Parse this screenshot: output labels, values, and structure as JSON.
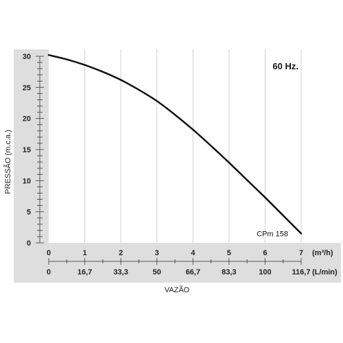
{
  "chart_data": {
    "type": "line",
    "frequency_label": "60 Hz.",
    "ylabel": "PRESSÃO (m.c.a.)",
    "xlabel": "VAZÃO",
    "ylim": [
      0,
      30
    ],
    "y_ticks": [
      "0",
      "5",
      "10",
      "15",
      "20",
      "25",
      "30"
    ],
    "xlim": [
      0,
      7
    ],
    "x_ticks_m3h": [
      "0",
      "1",
      "2",
      "3",
      "4",
      "5",
      "6",
      "7"
    ],
    "x_unit_m3h": "(m³/h)",
    "x_ticks_lmin": [
      "0",
      "16,7",
      "33,3",
      "50",
      "66,7",
      "83,3",
      "100",
      "116,7"
    ],
    "x_unit_lmin": "(L/min)",
    "grid": true,
    "series": [
      {
        "name": "CPm 158",
        "color": "#111111",
        "x": [
          0,
          0.5,
          1,
          1.5,
          2,
          2.5,
          3,
          3.5,
          4,
          4.5,
          5,
          5.5,
          6,
          6.5,
          7
        ],
        "y": [
          30.2,
          29.5,
          28.6,
          27.5,
          26.2,
          24.6,
          22.8,
          20.6,
          18.2,
          15.6,
          12.9,
          10.1,
          7.3,
          4.4,
          1.5
        ]
      }
    ]
  }
}
